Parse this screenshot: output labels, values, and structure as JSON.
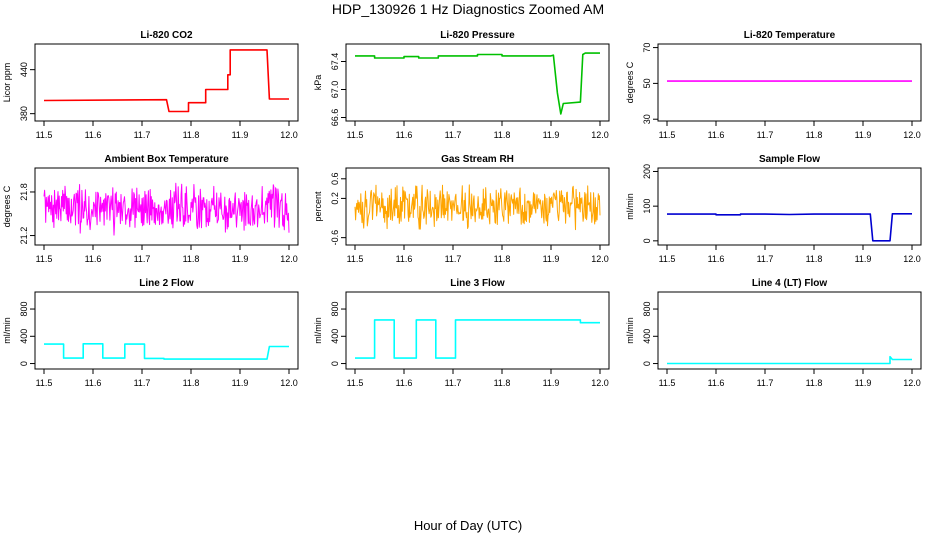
{
  "page": {
    "title": "HDP_130926  1 Hz Diagnostics Zoomed AM",
    "xlabel": "Hour of Day (UTC)"
  },
  "chart_data": [
    {
      "type": "line",
      "title": "Li-820 CO2",
      "ylabel": "Licor ppm",
      "color": "#ff0000",
      "xlim": [
        11.5,
        12.0
      ],
      "ylim": [
        370,
        475
      ],
      "x_ticks": [
        "11.5",
        "11.6",
        "11.7",
        "11.8",
        "11.9",
        "12.0"
      ],
      "y_ticks": [
        "380",
        "440"
      ],
      "y_tick_values": [
        380,
        440
      ],
      "series": [
        {
          "segments": [
            [
              11.5,
              398
            ],
            [
              11.75,
              399
            ],
            [
              11.755,
              383
            ],
            [
              11.795,
              383
            ],
            [
              11.795,
              395
            ],
            [
              11.83,
              395
            ],
            [
              11.83,
              413
            ],
            [
              11.875,
              413
            ],
            [
              11.875,
              433
            ],
            [
              11.88,
              433
            ],
            [
              11.88,
              467
            ],
            [
              11.955,
              467
            ],
            [
              11.96,
              400
            ],
            [
              12.0,
              400
            ]
          ]
        }
      ]
    },
    {
      "type": "line",
      "title": "Li-820 Pressure",
      "ylabel": "kPa",
      "color": "#00c000",
      "xlim": [
        11.5,
        12.0
      ],
      "ylim": [
        66.55,
        67.65
      ],
      "x_ticks": [
        "11.5",
        "11.6",
        "11.7",
        "11.8",
        "11.9",
        "12.0"
      ],
      "y_ticks": [
        "66.6",
        "67.0",
        "67.4"
      ],
      "y_tick_values": [
        66.6,
        67.0,
        67.4
      ],
      "series": [
        {
          "segments": [
            [
              11.5,
              67.48
            ],
            [
              11.54,
              67.48
            ],
            [
              11.54,
              67.45
            ],
            [
              11.6,
              67.45
            ],
            [
              11.6,
              67.47
            ],
            [
              11.63,
              67.47
            ],
            [
              11.63,
              67.45
            ],
            [
              11.67,
              67.45
            ],
            [
              11.67,
              67.48
            ],
            [
              11.75,
              67.48
            ],
            [
              11.75,
              67.5
            ],
            [
              11.8,
              67.5
            ],
            [
              11.8,
              67.48
            ],
            [
              11.9,
              67.48
            ],
            [
              11.905,
              67.49
            ],
            [
              11.913,
              66.95
            ],
            [
              11.92,
              66.65
            ],
            [
              11.925,
              66.8
            ],
            [
              11.96,
              66.82
            ],
            [
              11.965,
              67.5
            ],
            [
              11.97,
              67.52
            ],
            [
              12.0,
              67.52
            ]
          ]
        }
      ]
    },
    {
      "type": "line",
      "title": "Li-820 Temperature",
      "ylabel": "degrees C",
      "color": "#ff00ff",
      "xlim": [
        11.5,
        12.0
      ],
      "ylim": [
        29,
        72
      ],
      "x_ticks": [
        "11.5",
        "11.6",
        "11.7",
        "11.8",
        "11.9",
        "12.0"
      ],
      "y_ticks": [
        "30",
        "50",
        "70"
      ],
      "y_tick_values": [
        30,
        50,
        70
      ],
      "series": [
        {
          "segments": [
            [
              11.5,
              51.3
            ],
            [
              12.0,
              51.3
            ]
          ]
        }
      ]
    },
    {
      "type": "line",
      "title": "Ambient Box Temperature",
      "ylabel": "degrees C",
      "color": "#ff00ff",
      "xlim": [
        11.5,
        12.0
      ],
      "ylim": [
        21.07,
        22.13
      ],
      "x_ticks": [
        "11.5",
        "11.6",
        "11.7",
        "11.8",
        "11.9",
        "12.0"
      ],
      "y_ticks": [
        "21.2",
        "21.8"
      ],
      "y_tick_values": [
        21.2,
        21.8
      ],
      "series": [
        {
          "noise": {
            "center": 21.58,
            "amplitude": 0.38,
            "density": 420,
            "seed": 7
          }
        }
      ]
    },
    {
      "type": "line",
      "title": "Gas Stream RH",
      "ylabel": "percent",
      "color": "#ffa500",
      "xlim": [
        11.5,
        12.0
      ],
      "ylim": [
        -0.75,
        0.82
      ],
      "x_ticks": [
        "11.5",
        "11.6",
        "11.7",
        "11.8",
        "11.9",
        "12.0"
      ],
      "y_ticks": [
        "-0.6",
        "0.2",
        "0.6"
      ],
      "y_tick_values": [
        -0.6,
        0.2,
        0.6
      ],
      "series": [
        {
          "noise": {
            "center": 0.05,
            "amplitude": 0.5,
            "density": 420,
            "seed": 13
          }
        }
      ]
    },
    {
      "type": "line",
      "title": "Sample Flow",
      "ylabel": "ml/min",
      "color": "#0000d0",
      "xlim": [
        11.5,
        12.0
      ],
      "ylim": [
        -12,
        210
      ],
      "x_ticks": [
        "11.5",
        "11.6",
        "11.7",
        "11.8",
        "11.9",
        "12.0"
      ],
      "y_ticks": [
        "0",
        "100",
        "200"
      ],
      "y_tick_values": [
        0,
        100,
        200
      ],
      "series": [
        {
          "segments": [
            [
              11.5,
              77
            ],
            [
              11.6,
              77
            ],
            [
              11.6,
              75
            ],
            [
              11.65,
              75
            ],
            [
              11.65,
              77
            ],
            [
              11.7,
              77
            ],
            [
              11.75,
              76
            ],
            [
              11.8,
              77
            ],
            [
              11.915,
              77
            ],
            [
              11.92,
              0
            ],
            [
              11.955,
              0
            ],
            [
              11.96,
              78
            ],
            [
              12.0,
              78
            ]
          ]
        }
      ]
    },
    {
      "type": "line",
      "title": "Line 2 Flow",
      "ylabel": "ml/min",
      "color": "#00ffff",
      "xlim": [
        11.5,
        12.0
      ],
      "ylim": [
        -80,
        1050
      ],
      "x_ticks": [
        "11.5",
        "11.6",
        "11.7",
        "11.8",
        "11.9",
        "12.0"
      ],
      "y_ticks": [
        "0",
        "400",
        "800"
      ],
      "y_tick_values": [
        0,
        400,
        800
      ],
      "series": [
        {
          "segments": [
            [
              11.5,
              285
            ],
            [
              11.54,
              285
            ],
            [
              11.54,
              80
            ],
            [
              11.58,
              80
            ],
            [
              11.58,
              290
            ],
            [
              11.62,
              290
            ],
            [
              11.62,
              80
            ],
            [
              11.665,
              80
            ],
            [
              11.665,
              285
            ],
            [
              11.705,
              285
            ],
            [
              11.705,
              75
            ],
            [
              11.745,
              75
            ],
            [
              11.745,
              65
            ],
            [
              11.955,
              65
            ],
            [
              11.96,
              250
            ],
            [
              12.0,
              250
            ]
          ]
        }
      ]
    },
    {
      "type": "line",
      "title": "Line 3 Flow",
      "ylabel": "ml/min",
      "color": "#00ffff",
      "xlim": [
        11.5,
        12.0
      ],
      "ylim": [
        -80,
        1050
      ],
      "x_ticks": [
        "11.5",
        "11.6",
        "11.7",
        "11.8",
        "11.9",
        "12.0"
      ],
      "y_ticks": [
        "0",
        "400",
        "800"
      ],
      "y_tick_values": [
        0,
        400,
        800
      ],
      "series": [
        {
          "segments": [
            [
              11.5,
              80
            ],
            [
              11.54,
              80
            ],
            [
              11.54,
              640
            ],
            [
              11.58,
              640
            ],
            [
              11.58,
              80
            ],
            [
              11.625,
              80
            ],
            [
              11.625,
              640
            ],
            [
              11.665,
              640
            ],
            [
              11.665,
              80
            ],
            [
              11.705,
              80
            ],
            [
              11.705,
              640
            ],
            [
              11.96,
              640
            ],
            [
              11.96,
              600
            ],
            [
              12.0,
              600
            ]
          ]
        }
      ]
    },
    {
      "type": "line",
      "title": "Line 4 (LT) Flow",
      "ylabel": "ml/min",
      "color": "#00ffff",
      "xlim": [
        11.5,
        12.0
      ],
      "ylim": [
        -80,
        1050
      ],
      "x_ticks": [
        "11.5",
        "11.6",
        "11.7",
        "11.8",
        "11.9",
        "12.0"
      ],
      "y_ticks": [
        "0",
        "400",
        "800"
      ],
      "y_tick_values": [
        0,
        400,
        800
      ],
      "series": [
        {
          "segments": [
            [
              11.5,
              0
            ],
            [
              11.955,
              0
            ],
            [
              11.955,
              100
            ],
            [
              11.96,
              60
            ],
            [
              12.0,
              60
            ]
          ]
        }
      ]
    }
  ]
}
